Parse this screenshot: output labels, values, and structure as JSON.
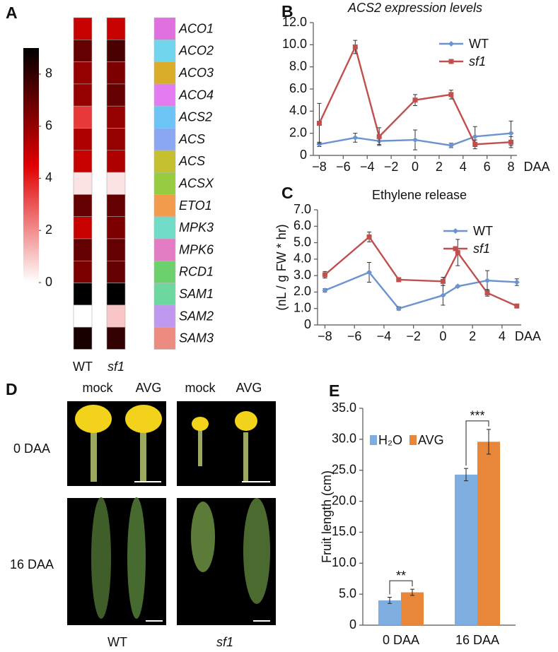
{
  "chart_data": [
    {
      "type": "heatmap",
      "panel": "A",
      "rows": [
        "ACO1",
        "ACO2",
        "ACO3",
        "ACO4",
        "ACS2",
        "ACS",
        "ACS",
        "ACSX",
        "ETO1",
        "MPK3",
        "MPK6",
        "RCD1",
        "SAM1",
        "SAM2",
        "SAM3"
      ],
      "row_colors": [
        "#e070e0",
        "#70d4ec",
        "#d9ac2a",
        "#e27cf0",
        "#6cc4f4",
        "#8aa8f2",
        "#c4c030",
        "#98cc40",
        "#f09c4c",
        "#70dcc8",
        "#e47cc4",
        "#6cd06c",
        "#6cd8a0",
        "#c098f0",
        "#ec8c80"
      ],
      "columns": [
        "WT",
        "sf1"
      ],
      "values": [
        [
          5,
          5
        ],
        [
          7,
          7.5
        ],
        [
          6,
          6.5
        ],
        [
          6,
          7
        ],
        [
          3.5,
          6
        ],
        [
          5.5,
          6
        ],
        [
          5,
          5.5
        ],
        [
          0.5,
          0.5
        ],
        [
          7,
          7
        ],
        [
          5,
          6.5
        ],
        [
          7,
          7
        ],
        [
          6.5,
          7
        ],
        [
          9,
          9
        ],
        [
          0,
          1
        ],
        [
          8.5,
          8
        ]
      ],
      "zlim": [
        0,
        9
      ],
      "zticks": [
        0,
        2,
        4,
        6,
        8
      ],
      "colormap": [
        "#ffffff",
        "#e00000",
        "#000000"
      ]
    },
    {
      "type": "line",
      "panel": "B",
      "title": "ACS2 expression levels",
      "x_label": "DAA",
      "x": [
        -8,
        -5,
        -3,
        0,
        3,
        5,
        8
      ],
      "xlim": [
        -8.5,
        8.5
      ],
      "xticks": [
        {
          "value": -8,
          "label": "−8"
        },
        {
          "value": -6,
          "label": "−6"
        },
        {
          "value": -4,
          "label": "−4"
        },
        {
          "value": -2,
          "label": "−2"
        },
        0,
        2,
        4,
        6,
        8
      ],
      "ylim": [
        0,
        12
      ],
      "yticks": [
        0,
        {
          "value": 2,
          "label": "2.0"
        },
        {
          "value": 4,
          "label": "4.0"
        },
        {
          "value": 6,
          "label": "6.0"
        },
        {
          "value": 8,
          "label": "8.0"
        },
        {
          "value": 10,
          "label": "10.0"
        },
        {
          "value": 12,
          "label": "12.0"
        }
      ],
      "legend": "top-right",
      "series": [
        {
          "name": "WT",
          "color": "#6b93cf",
          "marker": "diamond",
          "values": [
            1.0,
            1.6,
            1.3,
            1.4,
            0.9,
            1.7,
            2.0
          ],
          "errors": [
            0.2,
            0.4,
            0.3,
            0.9,
            0.2,
            0.9,
            1.1
          ]
        },
        {
          "name": "sf1",
          "color": "#c0504d",
          "marker": "square",
          "values": [
            2.9,
            9.8,
            1.7,
            5.0,
            5.5,
            1.0,
            1.2
          ],
          "errors": [
            1.8,
            0.6,
            0.8,
            0.5,
            0.4,
            0.4,
            0.5
          ]
        }
      ]
    },
    {
      "type": "line",
      "panel": "C",
      "title": "Ethylene release",
      "x_label": "DAA",
      "y_label": "(nL / g FW * hr)",
      "x": [
        -8,
        -5,
        -3,
        0,
        1,
        3,
        5
      ],
      "xlim": [
        -8.5,
        5.3
      ],
      "xticks": [
        {
          "value": -8,
          "label": "−8"
        },
        {
          "value": -6,
          "label": "−6"
        },
        {
          "value": -4,
          "label": "−4"
        },
        {
          "value": -2,
          "label": "−2"
        },
        0,
        2,
        4
      ],
      "ylim": [
        0,
        7
      ],
      "yticks": [
        0,
        {
          "value": 1,
          "label": "1.0"
        },
        {
          "value": 2,
          "label": "2.0"
        },
        {
          "value": 3,
          "label": "3.0"
        },
        {
          "value": 4,
          "label": "4.0"
        },
        {
          "value": 5,
          "label": "5.0"
        },
        {
          "value": 6,
          "label": "6.0"
        },
        {
          "value": 7,
          "label": "7.0"
        }
      ],
      "legend": "top-right",
      "series": [
        {
          "name": "WT",
          "color": "#6b93cf",
          "marker": "diamond",
          "values": [
            2.1,
            3.2,
            1.0,
            1.8,
            2.35,
            2.7,
            2.6
          ],
          "errors": [
            0.1,
            0.6,
            0.1,
            0.6,
            0.05,
            0.6,
            0.2
          ]
        },
        {
          "name": "sf1",
          "color": "#c0504d",
          "marker": "square",
          "values": [
            3.05,
            5.35,
            2.75,
            2.65,
            4.4,
            1.95,
            1.15
          ],
          "errors": [
            0.2,
            0.3,
            0.05,
            0.25,
            0.8,
            0.2,
            0.1
          ]
        }
      ]
    },
    {
      "type": "bar",
      "panel": "E",
      "y_label": "Fruit length (cm)",
      "categories": [
        "0 DAA",
        "16 DAA"
      ],
      "ylim": [
        0,
        35
      ],
      "yticks": [
        0,
        {
          "value": 5,
          "label": "5.0"
        },
        {
          "value": 10,
          "label": "10.0"
        },
        {
          "value": 15,
          "label": "15.0"
        },
        {
          "value": 20,
          "label": "20.0"
        },
        {
          "value": 25,
          "label": "25.0"
        },
        {
          "value": 30,
          "label": "30.0"
        },
        {
          "value": 35,
          "label": "35.0"
        }
      ],
      "legend": "top-left",
      "annotations": [
        "**",
        "***"
      ],
      "series": [
        {
          "name": "H₂O",
          "color": "#7eaee0",
          "values": [
            4.0,
            24.3
          ],
          "errors": [
            0.5,
            1.0
          ]
        },
        {
          "name": "AVG",
          "color": "#e8873a",
          "values": [
            5.3,
            29.6
          ],
          "errors": [
            0.5,
            2.0
          ]
        }
      ]
    }
  ],
  "photo_panel": {
    "panel": "D",
    "columns": [
      "mock",
      "AVG",
      "mock",
      "AVG"
    ],
    "rows": [
      "0 DAA",
      "16 DAA"
    ],
    "genotypes": [
      "WT",
      "sf1"
    ]
  }
}
